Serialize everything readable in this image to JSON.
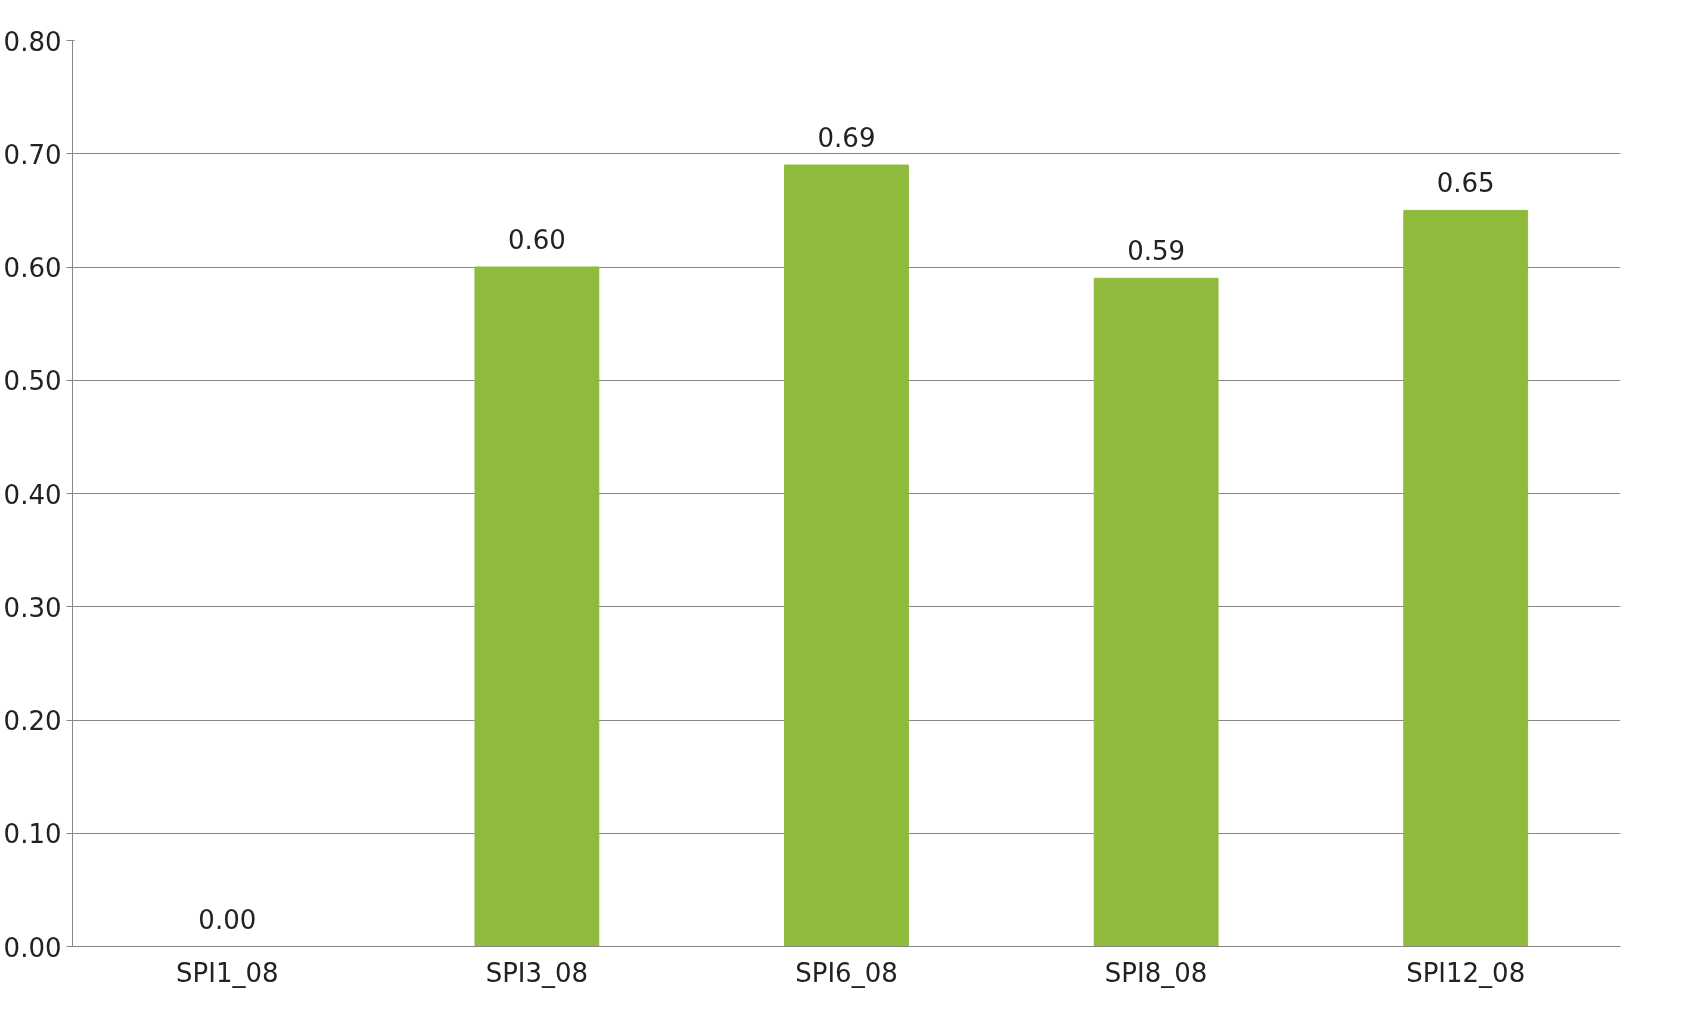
{
  "chart_data": {
    "type": "bar",
    "categories": [
      "SPI1_08",
      "SPI3_08",
      "SPI6_08",
      "SPI8_08",
      "SPI12_08"
    ],
    "values": [
      0.0,
      0.6,
      0.69,
      0.59,
      0.65
    ],
    "value_labels": [
      "0.00",
      "0.60",
      "0.69",
      "0.59",
      "0.65"
    ],
    "color": "#8fba3c",
    "ylim": [
      0,
      0.8
    ],
    "yticks": [
      {
        "value": 0,
        "label": "0.00"
      },
      {
        "value": 0.1,
        "label": "0.10"
      },
      {
        "value": 0.2,
        "label": "0.20"
      },
      {
        "value": 0.3,
        "label": "0.30"
      },
      {
        "value": 0.4,
        "label": "0.40"
      },
      {
        "value": 0.5,
        "label": "0.50"
      },
      {
        "value": 0.6,
        "label": "0.60"
      },
      {
        "value": 0.7,
        "label": "0.70"
      },
      {
        "value": 0.8,
        "label": "0.80"
      }
    ],
    "grid": "y"
  }
}
